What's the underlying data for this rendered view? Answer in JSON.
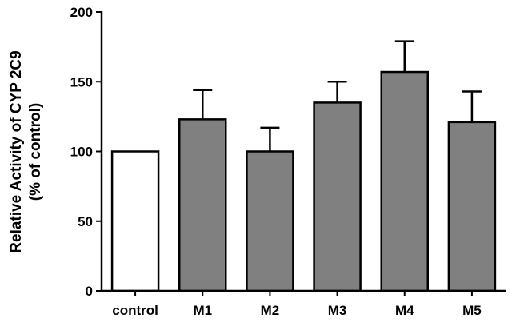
{
  "chart_data": {
    "type": "bar",
    "title": "",
    "xlabel": "",
    "ylabel_lines": [
      "Relative Activity of CYP 2C9",
      "(% of control)"
    ],
    "categories": [
      "control",
      "M1",
      "M2",
      "M3",
      "M4",
      "M5"
    ],
    "values": [
      100,
      123,
      100,
      135,
      157,
      121
    ],
    "error_upper": [
      0,
      21,
      17,
      15,
      22,
      22
    ],
    "bar_fill": [
      "#ffffff",
      "#808080",
      "#808080",
      "#808080",
      "#808080",
      "#808080"
    ],
    "ylim": [
      0,
      200
    ],
    "yticks": [
      0,
      50,
      100,
      150,
      200
    ],
    "grid": false,
    "legend": "none"
  }
}
